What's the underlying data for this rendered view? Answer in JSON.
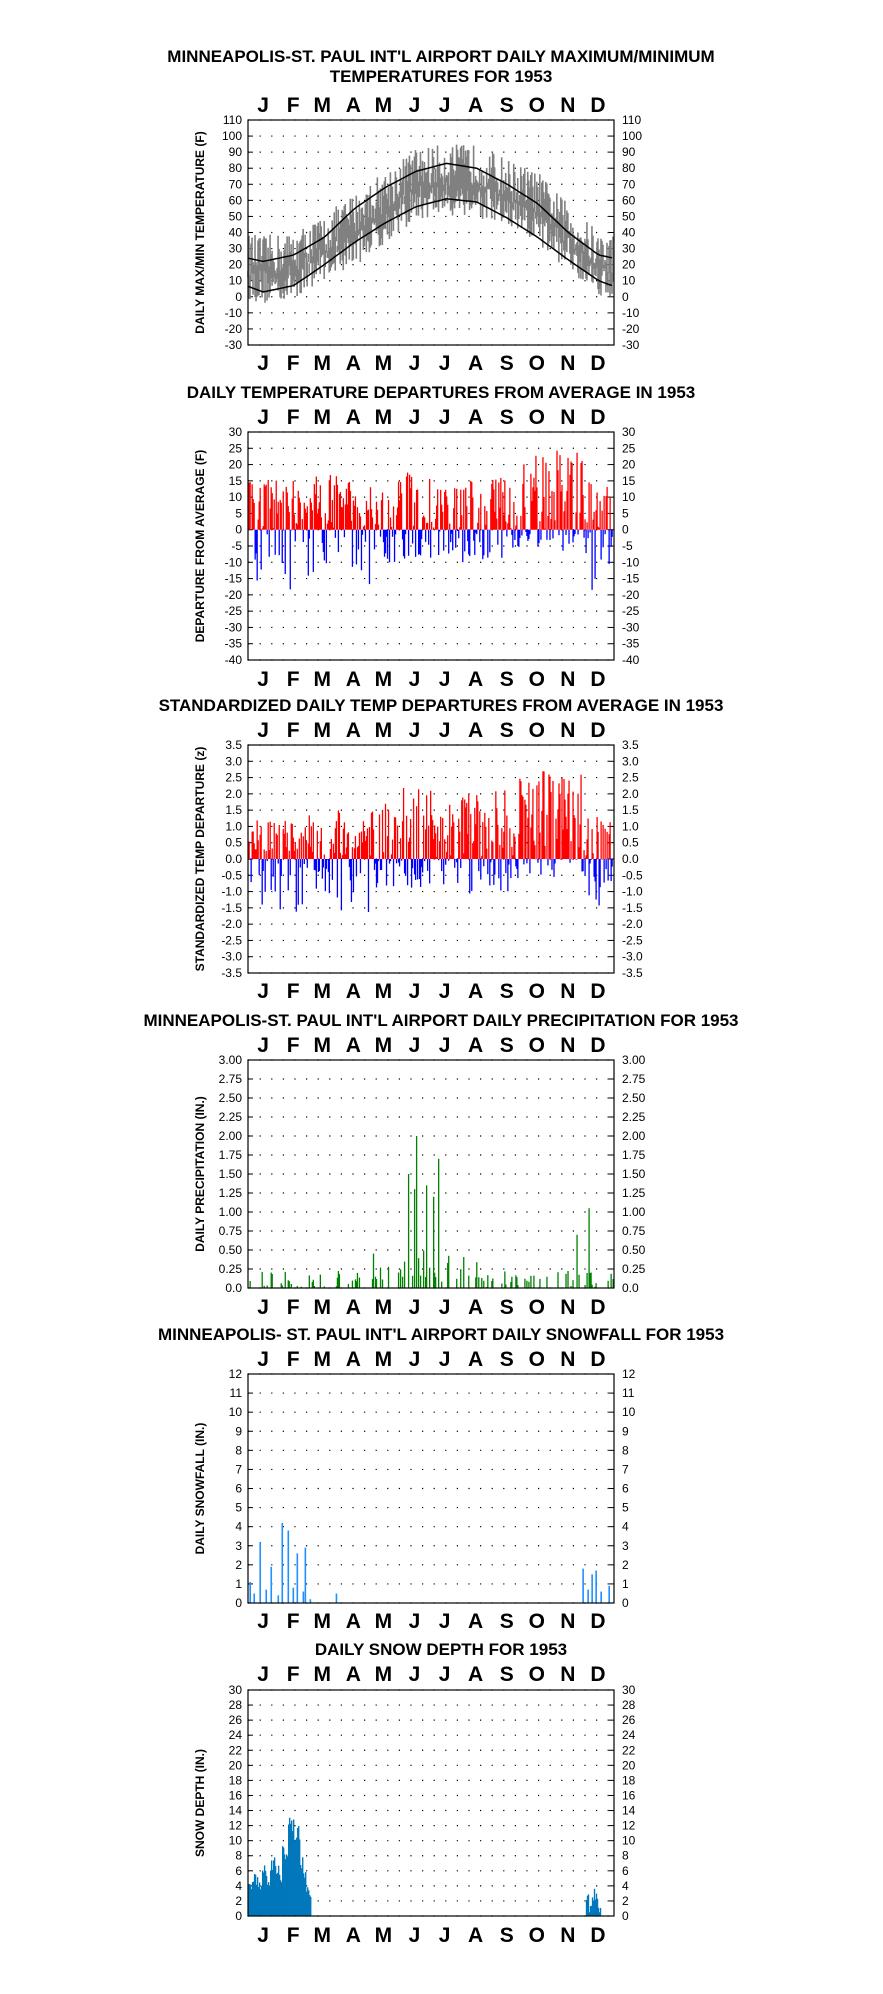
{
  "months": [
    "J",
    "F",
    "M",
    "A",
    "M",
    "J",
    "J",
    "A",
    "S",
    "O",
    "N",
    "D"
  ],
  "colors": {
    "red": "#ff0000",
    "blue": "#0000ff",
    "green": "#008000",
    "lightblue": "#1e90ff",
    "snowdepth": "#0077bb",
    "gray": "#808080"
  },
  "panels": [
    {
      "id": "temps",
      "title_lines": [
        "MINNEAPOLIS-ST. PAUL INT'L AIRPORT DAILY MAXIMUM/MINIMUM",
        "TEMPERATURES FOR 1953"
      ],
      "ylabel": "DAILY MAX/MIN TEMPERATURE (F)",
      "tick_labels": [
        "-30",
        "-20",
        "-10",
        "0",
        "10",
        "20",
        "30",
        "40",
        "50",
        "60",
        "70",
        "80",
        "90",
        "100",
        "110"
      ],
      "chart_data": {
        "type": "area",
        "ylim": [
          -30,
          110
        ],
        "grid": true,
        "xlabel": "",
        "series": [
          {
            "kind": "observed daily max/min range",
            "color": "gray"
          },
          {
            "kind": "normal max",
            "color": "#000000"
          },
          {
            "kind": "normal min",
            "color": "#000000"
          }
        ],
        "normal_max_monthly": [
          22,
          26,
          37,
          55,
          68,
          78,
          83,
          80,
          70,
          58,
          40,
          26
        ],
        "normal_min_monthly": [
          3,
          7,
          20,
          34,
          46,
          56,
          61,
          59,
          49,
          37,
          23,
          10
        ],
        "observed_max_monthly_approx": [
          25,
          28,
          38,
          52,
          66,
          80,
          82,
          82,
          73,
          65,
          45,
          28
        ],
        "observed_min_monthly_approx": [
          6,
          9,
          22,
          30,
          44,
          58,
          61,
          60,
          52,
          42,
          28,
          12
        ]
      }
    },
    {
      "id": "departures",
      "title_lines": [
        "DAILY TEMPERATURE DEPARTURES FROM AVERAGE IN 1953"
      ],
      "ylabel": "DEPARTURE FROM AVERAGE (F)",
      "tick_labels": [
        "-40",
        "-35",
        "-30",
        "-25",
        "-20",
        "-15",
        "-10",
        "-5",
        "0",
        "5",
        "10",
        "15",
        "20",
        "25",
        "30"
      ],
      "chart_data": {
        "type": "bar",
        "ylim": [
          -40,
          30
        ],
        "grid": true,
        "xlabel": "",
        "colors": {
          "positive": "red",
          "negative": "blue"
        },
        "monthly_max_approx": [
          16,
          15,
          17,
          15,
          16,
          18,
          14,
          17,
          16,
          23,
          26,
          15
        ],
        "monthly_min_approx": [
          -17,
          -19,
          -14,
          -21,
          -10,
          -9,
          -8,
          -10,
          -9,
          -6,
          -8,
          -20
        ]
      }
    },
    {
      "id": "standardized",
      "title_lines": [
        "STANDARDIZED DAILY TEMP DEPARTURES FROM AVERAGE IN 1953"
      ],
      "ylabel": "STANDARDIZED TEMP DEPARTURE (z)",
      "tick_labels": [
        "-3.5",
        "-3.0",
        "-2.5",
        "-2.0",
        "-1.5",
        "-1.0",
        "-0.5",
        "0.0",
        "0.5",
        "1.0",
        "1.5",
        "2.0",
        "2.5",
        "3.0",
        "3.5"
      ],
      "right_tick_labels": [
        "-3.5",
        "-3.0",
        "-2.5",
        "-2.0",
        "-1.5",
        "-1.0",
        "-0.5",
        "0.0",
        "0.5",
        "1.0",
        "1.5",
        "2.0",
        "2.5",
        "3.0",
        "3.5"
      ],
      "chart_data": {
        "type": "bar",
        "ylim": [
          -3.5,
          3.5
        ],
        "grid": true,
        "xlabel": "",
        "colors": {
          "positive": "red",
          "negative": "blue"
        },
        "monthly_max_approx": [
          1.2,
          1.2,
          1.5,
          1.3,
          1.7,
          2.2,
          1.7,
          2.1,
          2.5,
          2.7,
          2.7,
          1.3
        ],
        "monthly_min_approx": [
          -1.4,
          -1.7,
          -1.3,
          -2.4,
          -1.2,
          -0.9,
          -0.9,
          -1.1,
          -1.0,
          -0.6,
          -0.7,
          -1.6
        ]
      }
    },
    {
      "id": "precip",
      "title_lines": [
        "MINNEAPOLIS-ST. PAUL INT'L AIRPORT DAILY PRECIPITATION FOR 1953"
      ],
      "ylabel": "DAILY PRECIPITATION (IN.)",
      "tick_labels": [
        "0.0",
        "0.25",
        "0.50",
        "0.75",
        "1.00",
        "1.25",
        "1.50",
        "1.75",
        "2.00",
        "2.25",
        "2.50",
        "2.75",
        "3.00"
      ],
      "left_tick_labels": [
        "0.0",
        "0.25",
        "0.50",
        "0.75",
        "1.00",
        "1.25",
        "1.50",
        "1.75",
        "2.00",
        "2.25",
        "2.50",
        "2.75",
        "3.00"
      ],
      "chart_data": {
        "type": "bar",
        "ylim": [
          0,
          3
        ],
        "grid": true,
        "xlabel": "",
        "color": "green",
        "notable_days": [
          [
            160,
            1.5
          ],
          [
            166,
            1.3
          ],
          [
            168,
            2.0
          ],
          [
            178,
            1.35
          ],
          [
            185,
            1.2
          ],
          [
            190,
            1.7
          ],
          [
            328,
            0.7
          ],
          [
            340,
            1.05
          ]
        ]
      }
    },
    {
      "id": "snowfall",
      "title_lines": [
        "MINNEAPOLIS- ST. PAUL INT'L AIRPORT DAILY SNOWFALL FOR 1953"
      ],
      "ylabel": "DAILY SNOWFALL (IN.)",
      "tick_labels": [
        "0",
        "1",
        "2",
        "3",
        "4",
        "5",
        "6",
        "7",
        "8",
        "9",
        "10",
        "11",
        "12"
      ],
      "chart_data": {
        "type": "bar",
        "ylim": [
          0,
          12
        ],
        "grid": true,
        "xlabel": "",
        "color": "lightblue",
        "days": [
          [
            2,
            1.1
          ],
          [
            6,
            0.5
          ],
          [
            12,
            3.2
          ],
          [
            18,
            0.7
          ],
          [
            23,
            1.9
          ],
          [
            30,
            0.4
          ],
          [
            34,
            4.2
          ],
          [
            40,
            3.8
          ],
          [
            45,
            0.8
          ],
          [
            49,
            2.6
          ],
          [
            55,
            0.6
          ],
          [
            57,
            2.9
          ],
          [
            62,
            0.2
          ],
          [
            88,
            0.5
          ],
          [
            334,
            1.8
          ],
          [
            339,
            0.7
          ],
          [
            343,
            1.5
          ],
          [
            347,
            1.7
          ],
          [
            352,
            0.6
          ],
          [
            360,
            0.9
          ]
        ]
      }
    },
    {
      "id": "snowdepth",
      "title_lines": [
        "DAILY SNOW DEPTH FOR 1953"
      ],
      "ylabel": "SNOW DEPTH (IN.)",
      "tick_labels": [
        "0",
        "2",
        "4",
        "6",
        "8",
        "10",
        "12",
        "14",
        "16",
        "18",
        "20",
        "22",
        "24",
        "26",
        "28",
        "30"
      ],
      "chart_data": {
        "type": "area",
        "ylim": [
          0,
          30
        ],
        "grid": true,
        "xlabel": "",
        "color": "snowdepth",
        "segments": [
          [
            0,
            4
          ],
          [
            5,
            5
          ],
          [
            10,
            4
          ],
          [
            14,
            6
          ],
          [
            18,
            5
          ],
          [
            22,
            7
          ],
          [
            27,
            6
          ],
          [
            31,
            5
          ],
          [
            34,
            9
          ],
          [
            37,
            8
          ],
          [
            40,
            13
          ],
          [
            43,
            12
          ],
          [
            46,
            10
          ],
          [
            49,
            11
          ],
          [
            52,
            7
          ],
          [
            55,
            5
          ],
          [
            58,
            4
          ],
          [
            61,
            2
          ],
          [
            63,
            0
          ],
          [
            334,
            0
          ],
          [
            337,
            2
          ],
          [
            340,
            1
          ],
          [
            343,
            3
          ],
          [
            346,
            2
          ],
          [
            349,
            1
          ],
          [
            352,
            0
          ]
        ]
      }
    }
  ]
}
